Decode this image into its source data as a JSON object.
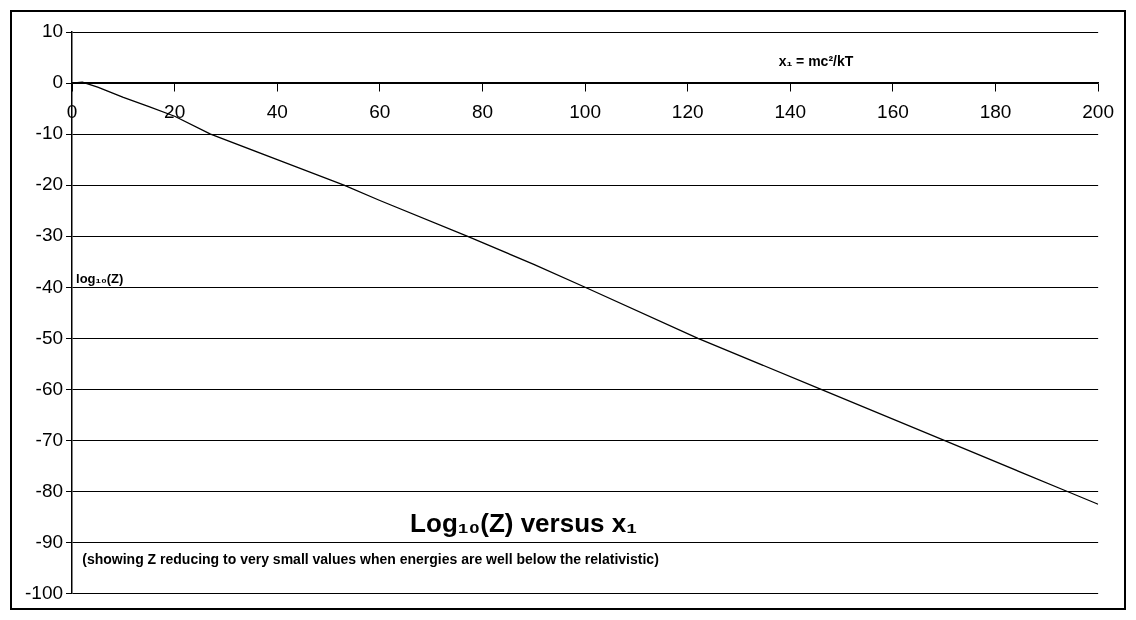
{
  "chart_data": {
    "type": "line",
    "title": "Log₁₀(Z) versus x₁",
    "subtitle": "(showing Z reducing to very small values when energies are well below the relativistic)",
    "xlabel": "x₁ = mc²/kT",
    "ylabel": "log₁₀(Z)",
    "x": [
      0,
      2,
      5,
      10,
      15,
      20,
      27,
      40,
      53,
      60,
      77,
      90,
      100,
      122,
      146,
      170,
      194,
      200
    ],
    "series": [
      {
        "color": "#000000",
        "values": [
          0,
          0.2,
          -0.8,
          -2.8,
          -4.6,
          -6.5,
          -10,
          -15,
          -20,
          -23,
          -30,
          -35.5,
          -40,
          -50,
          -60,
          -70,
          -80,
          -82.5
        ]
      }
    ],
    "xlim": [
      0,
      200
    ],
    "xticks": [
      0,
      20,
      40,
      60,
      80,
      100,
      120,
      140,
      160,
      180,
      200
    ],
    "ylim": [
      -100,
      10
    ],
    "yticks": [
      -100,
      -90,
      -80,
      -70,
      -60,
      -50,
      -40,
      -30,
      -20,
      -10,
      0,
      10
    ],
    "grid": "y",
    "legend": false,
    "marker": "none",
    "line_style": "solid"
  }
}
